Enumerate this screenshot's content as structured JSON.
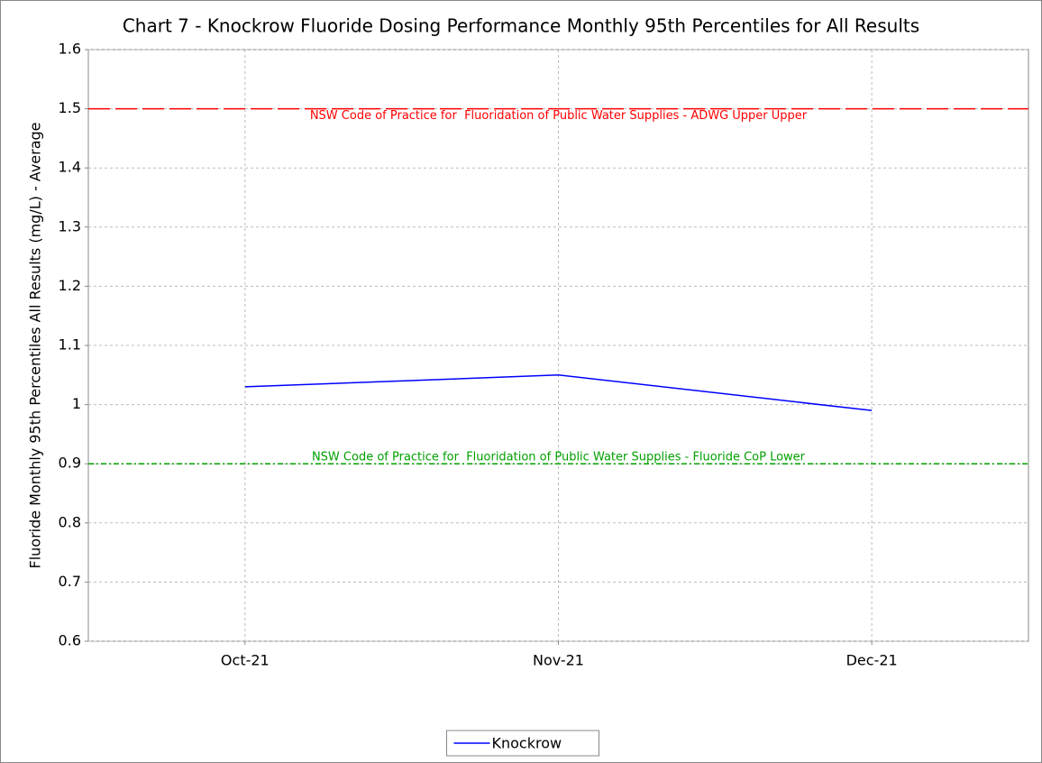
{
  "chart_data": {
    "type": "line",
    "title": "Chart 7 - Knockrow Fluoride Dosing Performance Monthly 95th Percentiles for All Results",
    "y_label": "Fluoride Monthly 95th Percentiles All Results (mg/L) - Average",
    "categories": [
      "Oct-21",
      "Nov-21",
      "Dec-21"
    ],
    "series": [
      {
        "name": "Knockrow",
        "color": "#0000ff",
        "values": [
          1.03,
          1.05,
          0.99
        ]
      }
    ],
    "reference_lines": [
      {
        "value": 1.5,
        "label": "NSW Code of Practice for  Fluoridation of Public Water Supplies - ADWG Upper Upper",
        "color": "#ff0000",
        "style": "dashed"
      },
      {
        "value": 0.9,
        "label": "NSW Code of Practice for  Fluoridation of Public Water Supplies - Fluoride CoP Lower",
        "color": "#00a000",
        "style": "dash-dot"
      }
    ],
    "ylim": [
      0.6,
      1.6
    ],
    "yticks": [
      0.6,
      0.7,
      0.8,
      0.9,
      1,
      1.1,
      1.2,
      1.3,
      1.4,
      1.5,
      1.6
    ],
    "grid": true,
    "legend": "bottom"
  }
}
